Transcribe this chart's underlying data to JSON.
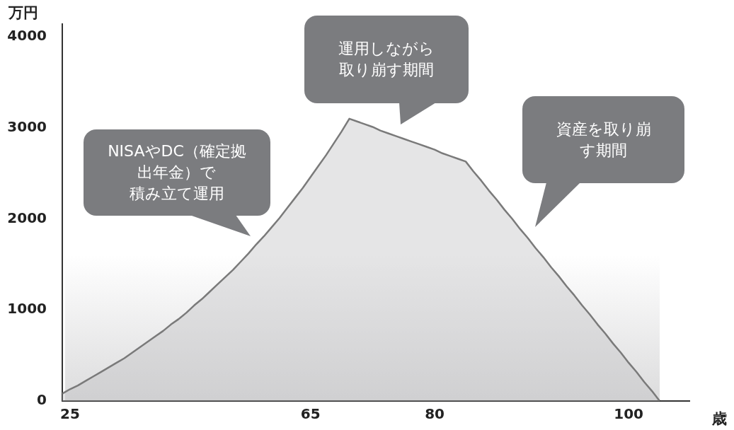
{
  "chart_data": {
    "type": "area",
    "ylabel": "万円",
    "xlabel": "歳",
    "categories": [
      null,
      "25",
      null,
      null,
      null,
      null,
      null,
      null,
      null,
      null,
      null,
      null,
      null,
      null,
      null,
      null,
      null,
      null,
      null,
      null,
      null,
      null,
      null,
      null,
      null,
      null,
      null,
      null,
      null,
      null,
      null,
      null,
      "65",
      null,
      null,
      null,
      null,
      null,
      null,
      null,
      null,
      null,
      null,
      null,
      null,
      null,
      null,
      null,
      "80",
      null,
      null,
      null,
      null,
      null,
      null,
      null,
      null,
      null,
      null,
      null,
      null,
      null,
      null,
      null,
      null,
      null,
      null,
      null,
      null,
      null,
      null,
      null,
      null,
      "100",
      null,
      null,
      null,
      null
    ],
    "series": [
      {
        "color": "#7a7a7a",
        "values": [
          80,
          130,
          170,
          220,
          270,
          320,
          370,
          420,
          470,
          530,
          590,
          650,
          710,
          770,
          840,
          900,
          970,
          1050,
          1120,
          1200,
          1280,
          1360,
          1440,
          1530,
          1620,
          1720,
          1810,
          1910,
          2010,
          2120,
          2230,
          2340,
          2460,
          2580,
          2700,
          2830,
          2960,
          3100,
          3070,
          3040,
          3010,
          2970,
          2940,
          2910,
          2880,
          2850,
          2820,
          2790,
          2760,
          2720,
          2690,
          2660,
          2630,
          2520,
          2420,
          2310,
          2210,
          2100,
          2000,
          1890,
          1790,
          1680,
          1580,
          1470,
          1370,
          1260,
          1160,
          1050,
          950,
          840,
          740,
          630,
          530,
          420,
          320,
          210,
          110,
          0
        ]
      }
    ],
    "ylim": [
      0,
      4000
    ],
    "yticks": [
      0,
      1000,
      2000,
      3000,
      4000
    ],
    "annotations": [
      "NISAやDC（確定拠出年金）で積み立て運用",
      "運用しながら取り崩す期間",
      "資産を取り崩す期間"
    ]
  }
}
